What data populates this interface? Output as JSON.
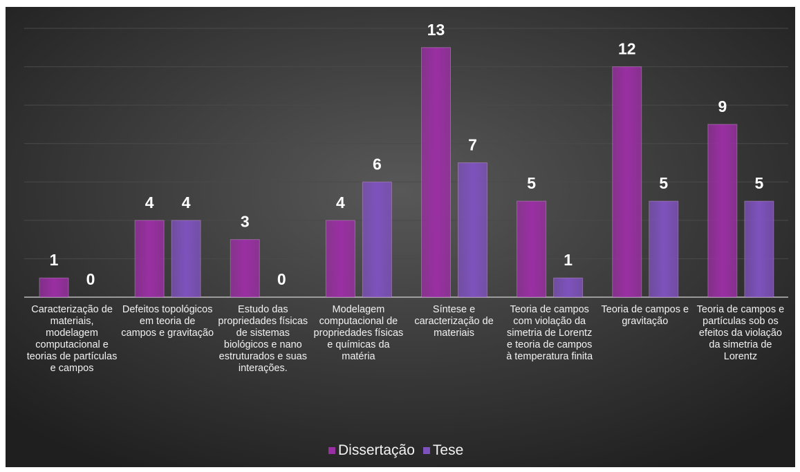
{
  "chart_data": {
    "type": "bar",
    "categories": [
      "Caracterização de materiais, modelagem computacional e teorias de partículas e campos",
      "Defeitos topológicos em teoria de campos e gravitação",
      "Estudo das propriedades físicas de sistemas biológicos e nano estruturados e suas interações.",
      "Modelagem computacional de propriedades físicas e químicas da matéria",
      "Síntese e caracterização de materiais",
      "Teoria de campos com violação da simetria de Lorentz e teoria de campos à temperatura finita",
      "Teoria de campos e gravitação",
      "Teoria de campos e partículas sob os efeitos da violação da simetria de Lorentz"
    ],
    "series": [
      {
        "name": "Dissertação",
        "color": "#9a2fa3",
        "values": [
          1,
          4,
          3,
          4,
          13,
          5,
          12,
          9
        ]
      },
      {
        "name": "Tese",
        "color": "#7e52bd",
        "values": [
          0,
          4,
          0,
          6,
          7,
          1,
          5,
          5
        ]
      }
    ],
    "ylim": [
      0,
      14
    ],
    "yticks": [
      0,
      2,
      4,
      6,
      8,
      10,
      12,
      14
    ],
    "grid": true,
    "legend": "bottom"
  }
}
